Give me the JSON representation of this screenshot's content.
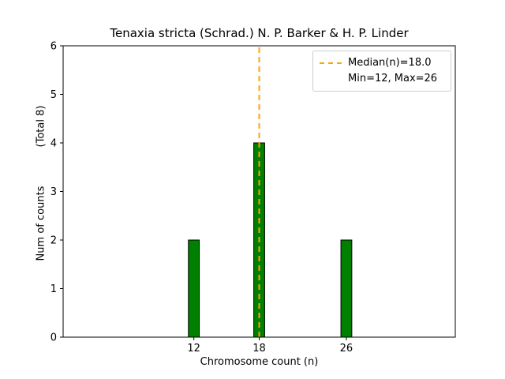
{
  "figure": {
    "background": "#ffffff"
  },
  "chart_data": {
    "type": "bar",
    "title": "Tenaxia stricta (Schrad.) N. P. Barker & H. P. Linder",
    "xlabel": "Chromosome count (n)",
    "ylabel": "Num of counts",
    "ylabel_note": "(Total 8)",
    "total_counts": 8,
    "categories": [
      12,
      18,
      26
    ],
    "values": [
      2,
      4,
      2
    ],
    "xticks": [
      12,
      18,
      26
    ],
    "yticks": [
      0,
      1,
      2,
      3,
      4,
      5,
      6
    ],
    "xlim": [
      0,
      36
    ],
    "ylim": [
      0,
      6
    ],
    "grid": false,
    "bar_width_units": 1,
    "bar_color": "#008000",
    "bar_edge_color": "#000000",
    "median_line": {
      "x": 18,
      "color": "#ffa500",
      "style": "dashed"
    },
    "legend": {
      "position": "upper right",
      "entries": [
        {
          "label": "Median(n)=18.0",
          "marker": "dashed-line",
          "color": "#ffa500"
        },
        {
          "label": "Min=12, Max=26",
          "marker": "none"
        }
      ]
    }
  }
}
